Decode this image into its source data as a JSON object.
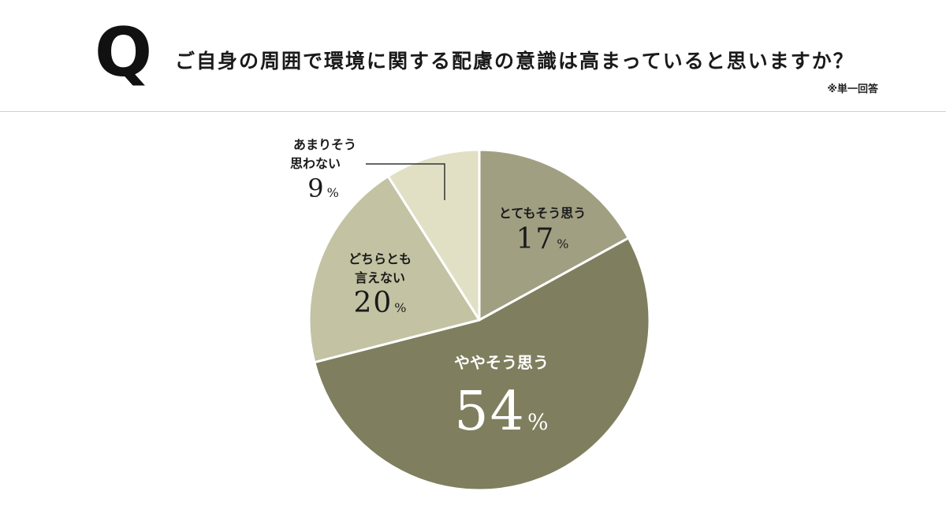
{
  "header": {
    "q_mark": "Q",
    "question": "ご自身の周囲で環境に関する配慮の意識は高まっていると思いますか？",
    "note": "※単一回答"
  },
  "colors": {
    "background": "#ffffff",
    "divider": "#cfcfcf",
    "slice_border": "#ffffff",
    "leader_line": "#333333"
  },
  "chart_data": {
    "type": "pie",
    "title": "",
    "unit": "%",
    "start_angle_deg": 0,
    "direction": "clockwise",
    "slices": [
      {
        "label": "とてもそう思う",
        "value": 17,
        "color": "#a19f82",
        "text_color": "#1a1a1a",
        "value_text": "17"
      },
      {
        "label": "ややそう思う",
        "value": 54,
        "color": "#7f7e5e",
        "text_color": "#ffffff",
        "value_text": "54"
      },
      {
        "label": "どちらとも言えない",
        "value": 20,
        "color": "#c3c2a3",
        "text_color": "#1a1a1a",
        "value_text": "20"
      },
      {
        "label": "あまりそう思わない",
        "value": 9,
        "color": "#e1e0c5",
        "text_color": "#1a1a1a",
        "value_text": "9"
      }
    ]
  }
}
